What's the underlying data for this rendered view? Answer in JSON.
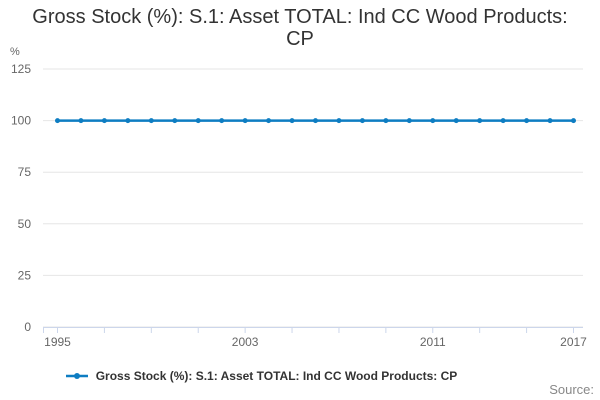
{
  "header": {
    "title_lines": [
      "Gross Stock (%): S.1: Asset TOTAL: Ind CC Wood Products:",
      "CP"
    ]
  },
  "chart_data": {
    "type": "line",
    "title": "Gross Stock (%): S.1: Asset TOTAL: Ind CC Wood Products: CP",
    "ylabel": "%",
    "x": [
      1995,
      1996,
      1997,
      1998,
      1999,
      2000,
      2001,
      2002,
      2003,
      2004,
      2005,
      2006,
      2007,
      2008,
      2009,
      2010,
      2011,
      2012,
      2013,
      2014,
      2015,
      2016,
      2017
    ],
    "series": [
      {
        "name": "Gross Stock (%): S.1: Asset TOTAL: Ind CC Wood Products: CP",
        "values": [
          100,
          100,
          100,
          100,
          100,
          100,
          100,
          100,
          100,
          100,
          100,
          100,
          100,
          100,
          100,
          100,
          100,
          100,
          100,
          100,
          100,
          100,
          100
        ]
      }
    ],
    "ylim": [
      0,
      125
    ],
    "yticks": [
      0,
      25,
      50,
      75,
      100,
      125
    ],
    "xticks": [
      1995,
      1997,
      1999,
      2001,
      2003,
      2005,
      2007,
      2009,
      2011,
      2013,
      2015,
      2017
    ],
    "xtick_labels": [
      "1995",
      "2003",
      "2011",
      "2017"
    ],
    "grid": "horizontal",
    "legend_position": "bottom"
  },
  "footer": {
    "source_label": "Source:"
  },
  "colors": {
    "line": "#0e7dc2",
    "grid": "#e6e6e6",
    "axis": "#ccd6eb",
    "tick_label": "#666666",
    "title_text": "#333333",
    "legend_text": "#333333",
    "source_text": "#888888"
  }
}
